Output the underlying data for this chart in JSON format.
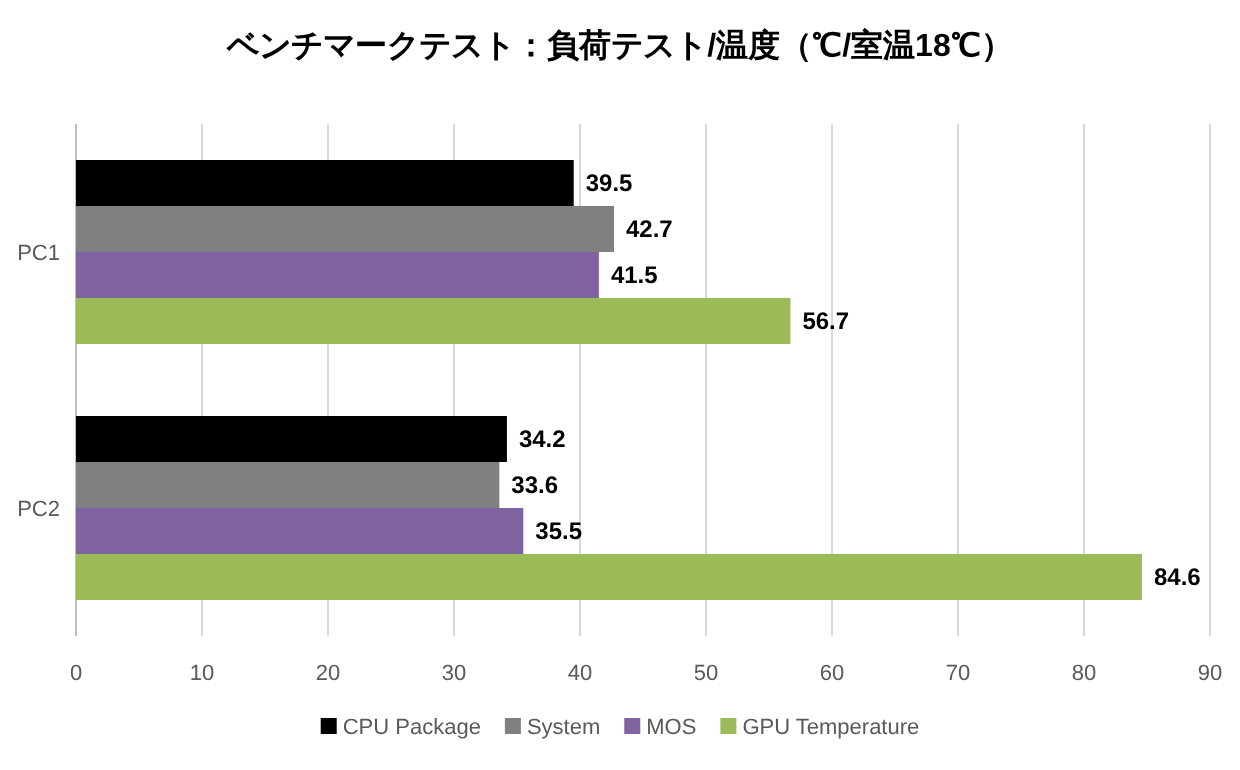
{
  "chart_data": {
    "type": "bar",
    "orientation": "horizontal",
    "title": "ベンチマークテスト：負荷テスト/温度（℃/室温18℃）",
    "categories": [
      "PC1",
      "PC2"
    ],
    "series": [
      {
        "name": "CPU Package",
        "color": "#000000",
        "values": [
          39.5,
          34.2
        ]
      },
      {
        "name": "System",
        "color": "#808080",
        "values": [
          42.7,
          33.6
        ]
      },
      {
        "name": "MOS",
        "color": "#8064a2",
        "values": [
          41.5,
          35.5
        ]
      },
      {
        "name": "GPU Temperature",
        "color": "#9bbb59",
        "values": [
          56.7,
          84.6
        ]
      }
    ],
    "xlim": [
      0,
      90
    ],
    "xticks": [
      0,
      10,
      20,
      30,
      40,
      50,
      60,
      70,
      80,
      90
    ],
    "grid": "x",
    "legend": "bottom",
    "data_labels": true
  }
}
